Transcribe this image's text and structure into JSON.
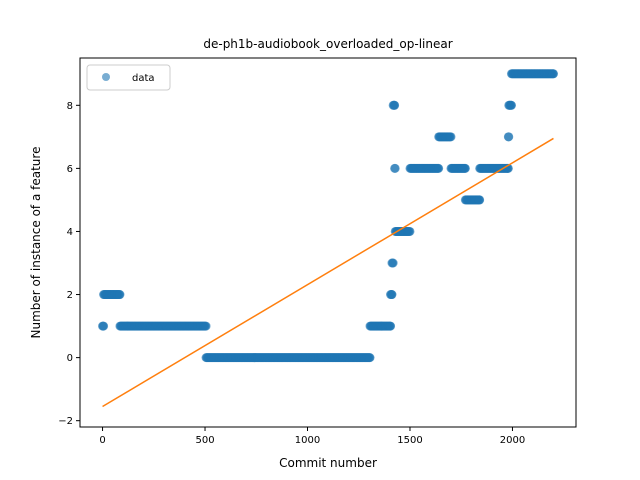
{
  "chart_data": {
    "type": "scatter",
    "title": "de-ph1b-audiobook_overloaded_op-linear",
    "xlabel": "Commit number",
    "ylabel": "Number of instance of a feature",
    "xlim": [
      -110,
      2310
    ],
    "ylim": [
      -2.2,
      9.5
    ],
    "xticks": [
      0,
      500,
      1000,
      1500,
      2000
    ],
    "yticks": [
      -2,
      0,
      2,
      4,
      6,
      8
    ],
    "grid": false,
    "legend": {
      "placement": "top-left",
      "entries": [
        "data"
      ]
    },
    "colors": {
      "data": "#1f77b4",
      "fit": "#ff7f0e"
    },
    "series": [
      {
        "name": "data",
        "kind": "scatter",
        "segments": [
          {
            "x_start": 0,
            "x_end": 5,
            "y": 1
          },
          {
            "x_start": 5,
            "x_end": 85,
            "y": 2
          },
          {
            "x_start": 85,
            "x_end": 505,
            "y": 1
          },
          {
            "x_start": 505,
            "x_end": 1305,
            "y": 0
          },
          {
            "x_start": 1305,
            "x_end": 1405,
            "y": 1
          },
          {
            "x_start": 1405,
            "x_end": 1412,
            "y": 2
          },
          {
            "x_start": 1412,
            "x_end": 1418,
            "y": 3
          },
          {
            "x_start": 1418,
            "x_end": 1425,
            "y": 8
          },
          {
            "x_start": 1425,
            "x_end": 1428,
            "y": 6
          },
          {
            "x_start": 1428,
            "x_end": 1500,
            "y": 4
          },
          {
            "x_start": 1500,
            "x_end": 1640,
            "y": 6
          },
          {
            "x_start": 1640,
            "x_end": 1700,
            "y": 7
          },
          {
            "x_start": 1700,
            "x_end": 1770,
            "y": 6
          },
          {
            "x_start": 1770,
            "x_end": 1840,
            "y": 5
          },
          {
            "x_start": 1840,
            "x_end": 1980,
            "y": 6
          },
          {
            "x_start": 1980,
            "x_end": 1982,
            "y": 7
          },
          {
            "x_start": 1982,
            "x_end": 1995,
            "y": 8
          },
          {
            "x_start": 1995,
            "x_end": 2200,
            "y": 9
          }
        ]
      },
      {
        "name": "",
        "kind": "line",
        "x": [
          0,
          2200
        ],
        "y": [
          -1.55,
          6.95
        ]
      }
    ]
  }
}
